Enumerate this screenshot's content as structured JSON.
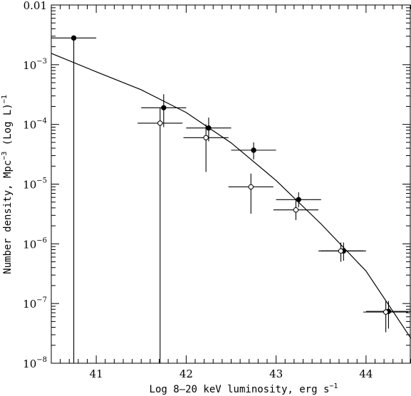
{
  "chart_data": {
    "type": "scatter",
    "title": "",
    "xlabel": {
      "main": "Log 8–20 keV luminosity, erg s",
      "sup": "−1"
    },
    "ylabel": {
      "pre": "Number density, Mpc",
      "sup1": "−3",
      "mid": " (Log L)",
      "sup2": "−1"
    },
    "xlim": [
      40.5,
      44.5
    ],
    "ylim": [
      1e-08,
      0.01
    ],
    "y_scale": "log",
    "grid": false,
    "x_ticks": [
      {
        "value": 41,
        "label": "41"
      },
      {
        "value": 42,
        "label": "42"
      },
      {
        "value": 43,
        "label": "43"
      },
      {
        "value": 44,
        "label": "44"
      }
    ],
    "y_ticks": [
      {
        "value": 0.01,
        "base": "0.01",
        "exp": ""
      },
      {
        "value": 0.001,
        "base": "10",
        "exp": "−3"
      },
      {
        "value": 0.0001,
        "base": "10",
        "exp": "−4"
      },
      {
        "value": 1e-05,
        "base": "10",
        "exp": "−5"
      },
      {
        "value": 1e-06,
        "base": "10",
        "exp": "−6"
      },
      {
        "value": 1e-07,
        "base": "10",
        "exp": "−7"
      },
      {
        "value": 1e-08,
        "base": "10",
        "exp": "−8"
      }
    ],
    "series": [
      {
        "marker": "filled-circle",
        "points": [
          {
            "x": 40.75,
            "y": 0.0028,
            "xerr": [
              0.25,
              0.25
            ],
            "ylo": 1e-08,
            "yhi": 0.0028
          },
          {
            "x": 41.75,
            "y": 0.00019,
            "xerr": [
              0.25,
              0.25
            ],
            "ylo": 9e-05,
            "yhi": 0.00032
          },
          {
            "x": 42.25,
            "y": 8.7e-05,
            "xerr": [
              0.25,
              0.25
            ],
            "ylo": 5.2e-05,
            "yhi": 0.00013
          },
          {
            "x": 42.75,
            "y": 3.7e-05,
            "xerr": [
              0.25,
              0.25
            ],
            "ylo": 2.6e-05,
            "yhi": 5e-05
          },
          {
            "x": 43.25,
            "y": 5.5e-06,
            "xerr": [
              0.25,
              0.25
            ],
            "ylo": 4.1e-06,
            "yhi": 7.3e-06
          },
          {
            "x": 43.75,
            "y": 7.6e-07,
            "xerr": [
              0.25,
              0.25
            ],
            "ylo": 5.2e-07,
            "yhi": 1.05e-06
          },
          {
            "x": 44.25,
            "y": 7.4e-08,
            "xerr": [
              0.25,
              0.25
            ],
            "ylo": 3.8e-08,
            "yhi": 1.1e-07
          }
        ]
      },
      {
        "marker": "open-circle",
        "points": [
          {
            "x": 41.71,
            "y": 0.000105,
            "xerr": [
              0.25,
              0.25
            ],
            "ylo": 1e-08,
            "yhi": 0.00019
          },
          {
            "x": 42.22,
            "y": 6e-05,
            "xerr": [
              0.25,
              0.25
            ],
            "ylo": 1.6e-05,
            "yhi": 0.0001
          },
          {
            "x": 42.72,
            "y": 9e-06,
            "xerr": [
              0.25,
              0.25
            ],
            "ylo": 3.2e-06,
            "yhi": 1.5e-05
          },
          {
            "x": 43.22,
            "y": 3.7e-06,
            "xerr": [
              0.25,
              0.25
            ],
            "ylo": 2.5e-06,
            "yhi": 5.5e-06
          },
          {
            "x": 43.72,
            "y": 7.6e-07,
            "xerr": [
              0.25,
              0.25
            ],
            "ylo": 5e-07,
            "yhi": 1.05e-06
          },
          {
            "x": 44.22,
            "y": 7.2e-08,
            "xerr": [
              0.25,
              0.25
            ],
            "ylo": 3.3e-08,
            "yhi": 1.1e-07
          }
        ]
      }
    ],
    "model_curve": {
      "x": [
        40.5,
        41.0,
        41.5,
        42.0,
        42.5,
        43.0,
        43.5,
        44.0,
        44.5
      ],
      "y": [
        0.00155,
        0.00076,
        0.00038,
        0.000158,
        4.9e-05,
        1.15e-05,
        2.15e-06,
        3.5e-07,
        2.6e-08
      ]
    }
  }
}
